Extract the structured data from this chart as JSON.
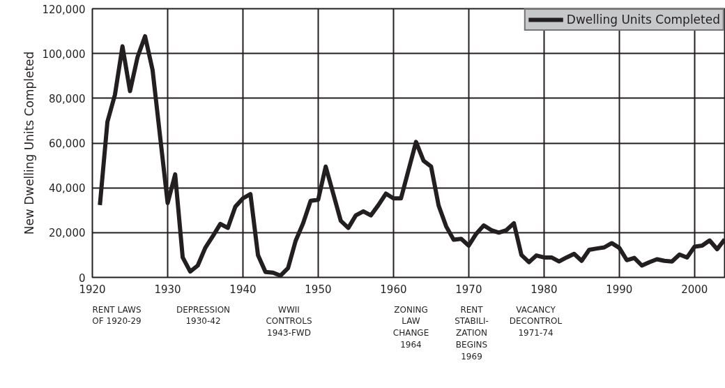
{
  "chart_data": {
    "type": "line",
    "ylabel": "New Dwelling Units Completed",
    "x": [
      1921,
      1922,
      1923,
      1924,
      1925,
      1926,
      1927,
      1928,
      1930,
      1931,
      1932,
      1933,
      1934,
      1935,
      1936,
      1937,
      1938,
      1939,
      1940,
      1941,
      1942,
      1943,
      1944,
      1945,
      1946,
      1947,
      1948,
      1949,
      1950,
      1951,
      1952,
      1953,
      1954,
      1955,
      1956,
      1957,
      1958,
      1959,
      1960,
      1961,
      1962,
      1963,
      1964,
      1965,
      1966,
      1967,
      1968,
      1969,
      1970,
      1971,
      1972,
      1973,
      1974,
      1975,
      1976,
      1977,
      1978,
      1979,
      1980,
      1981,
      1982,
      1983,
      1984,
      1985,
      1986,
      1987,
      1988,
      1989,
      1990,
      1991,
      1992,
      1993,
      1994,
      1995,
      1996,
      1997,
      1998,
      1999,
      2000,
      2001,
      2002,
      2003,
      2004
    ],
    "series": [
      {
        "name": "Dwelling Units Completed",
        "color": "#231f20",
        "values": [
          32300,
          69500,
          81600,
          103200,
          83200,
          98400,
          107700,
          92600,
          33200,
          46000,
          8900,
          2600,
          5300,
          13200,
          18400,
          23900,
          22100,
          31600,
          35300,
          37200,
          10000,
          2400,
          2100,
          800,
          4200,
          16300,
          24200,
          34200,
          34700,
          49500,
          37400,
          25300,
          22100,
          27700,
          29500,
          27700,
          32300,
          37400,
          35300,
          35300,
          47900,
          60500,
          52100,
          49500,
          32100,
          22800,
          16800,
          17200,
          14200,
          19500,
          23200,
          21100,
          20000,
          21100,
          24200,
          10000,
          6800,
          9800,
          8900,
          8900,
          7100,
          8900,
          10500,
          7400,
          12300,
          12900,
          13400,
          15300,
          13200,
          7700,
          8700,
          5300,
          6800,
          8100,
          7400,
          7100,
          10200,
          8900,
          13700,
          14200,
          16500,
          12600,
          17000
        ]
      }
    ],
    "xlim": [
      1920,
      2004
    ],
    "ylim": [
      0,
      120000
    ],
    "xticks": [
      1920,
      1930,
      1940,
      1950,
      1960,
      1970,
      1980,
      1990,
      2000
    ],
    "yticks": [
      {
        "value": 0,
        "label": "0"
      },
      {
        "value": 20000,
        "label": "20,000"
      },
      {
        "value": 40000,
        "label": "40,000"
      },
      {
        "value": 60000,
        "label": "60,000"
      },
      {
        "value": 80000,
        "label": "80,000"
      },
      {
        "value": 100000,
        "label": "100,000"
      },
      {
        "value": 120000,
        "label": "120,000"
      }
    ],
    "grid": true,
    "legend": "top right",
    "line_style": "solid",
    "marker": "none",
    "annotations": [
      "RENT LAWS\nOF 1920-29",
      "DEPRESSION\n1930-42",
      "WWII\nCONTROLS\n1943-FWD",
      "ZONING\nLAW\nCHANGE\n1964",
      "RENT\nSTABILI-\nZATION\nBEGINS\n1969",
      "VACANCY\nDECONTROL\n1971-74"
    ]
  }
}
